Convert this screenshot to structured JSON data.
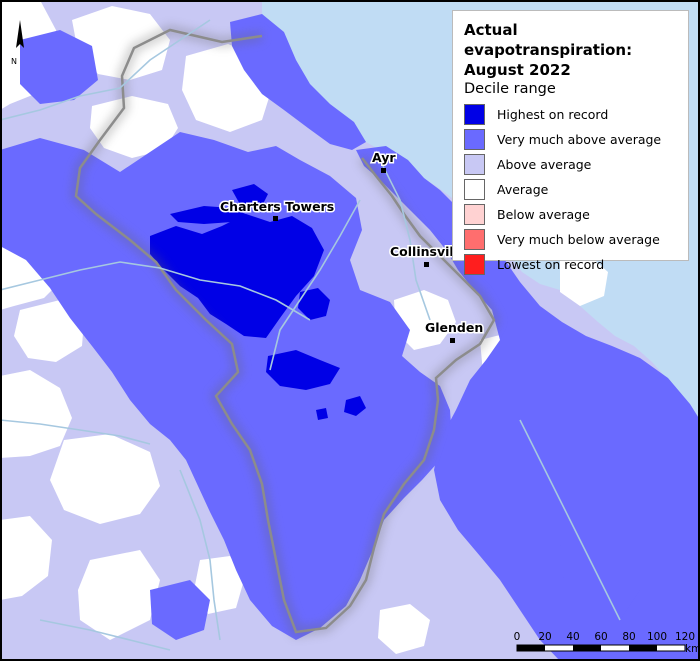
{
  "legend": {
    "title_line1": "Actual evapotranspiration:",
    "title_line2": "August 2022",
    "subtitle": "Decile range",
    "items": [
      {
        "label": "Highest on record",
        "color": "#0000e6"
      },
      {
        "label": "Very much above average",
        "color": "#6a6aff"
      },
      {
        "label": "Above average",
        "color": "#c8c8f4"
      },
      {
        "label": "Average",
        "color": "#ffffff"
      },
      {
        "label": "Below average",
        "color": "#ffd2d2"
      },
      {
        "label": "Very much below average",
        "color": "#ff6e6e"
      },
      {
        "label": "Lowest on record",
        "color": "#ff1e1e"
      }
    ]
  },
  "places": {
    "ayr": "Ayr",
    "charters_towers": "Charters Towers",
    "collinsville": "Collinsvil",
    "glenden": "Glenden"
  },
  "north_arrow": {
    "label": "N"
  },
  "scale_bar": {
    "ticks": [
      "0",
      "20",
      "40",
      "60",
      "80",
      "100",
      "120"
    ],
    "unit": "km"
  },
  "colors": {
    "sea": "#c0dcf4",
    "river": "#a6c8e0",
    "boundary": "#8c8c8c"
  }
}
